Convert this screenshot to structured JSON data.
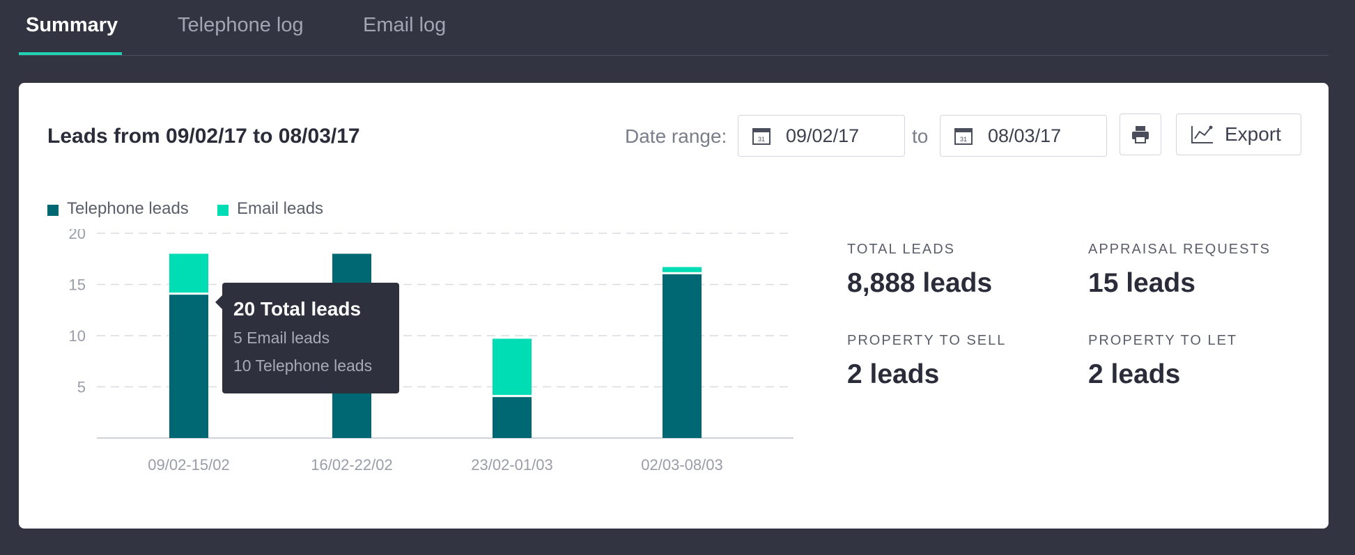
{
  "tabs": [
    {
      "label": "Summary",
      "active": true
    },
    {
      "label": "Telephone log",
      "active": false
    },
    {
      "label": "Email log",
      "active": false
    }
  ],
  "header": {
    "title": "Leads from 09/02/17 to 08/03/17",
    "date_range_label": "Date range:",
    "from_date": "09/02/17",
    "to_label": "to",
    "to_date": "08/03/17",
    "calendar_day": "31",
    "export_label": "Export"
  },
  "legend": [
    {
      "name": "Telephone leads",
      "color": "#006872"
    },
    {
      "name": "Email leads",
      "color": "#00ddb5"
    }
  ],
  "chart_data": {
    "type": "bar",
    "stacked": true,
    "categories": [
      "09/02-15/02",
      "16/02-22/02",
      "23/02-01/03",
      "02/03-08/03"
    ],
    "series": [
      {
        "name": "Telephone leads",
        "color": "#006872",
        "values": [
          14,
          18,
          4,
          16
        ]
      },
      {
        "name": "Email leads",
        "color": "#00ddb5",
        "values": [
          4,
          0,
          5.7,
          0.7
        ]
      }
    ],
    "y_ticks": [
      5,
      10,
      15,
      20
    ],
    "ylim": [
      0,
      20
    ],
    "grid": true,
    "legend_position": "top-left"
  },
  "tooltip": {
    "total": "20 Total leads",
    "email": "5 Email leads",
    "telephone": "10 Telephone leads"
  },
  "stats": [
    {
      "label": "TOTAL LEADS",
      "value": "8,888 leads"
    },
    {
      "label": "APPRAISAL REQUESTS",
      "value": "15 leads"
    },
    {
      "label": "PROPERTY TO SELL",
      "value": "2 leads"
    },
    {
      "label": "PROPERTY TO LET",
      "value": "2 leads"
    }
  ]
}
